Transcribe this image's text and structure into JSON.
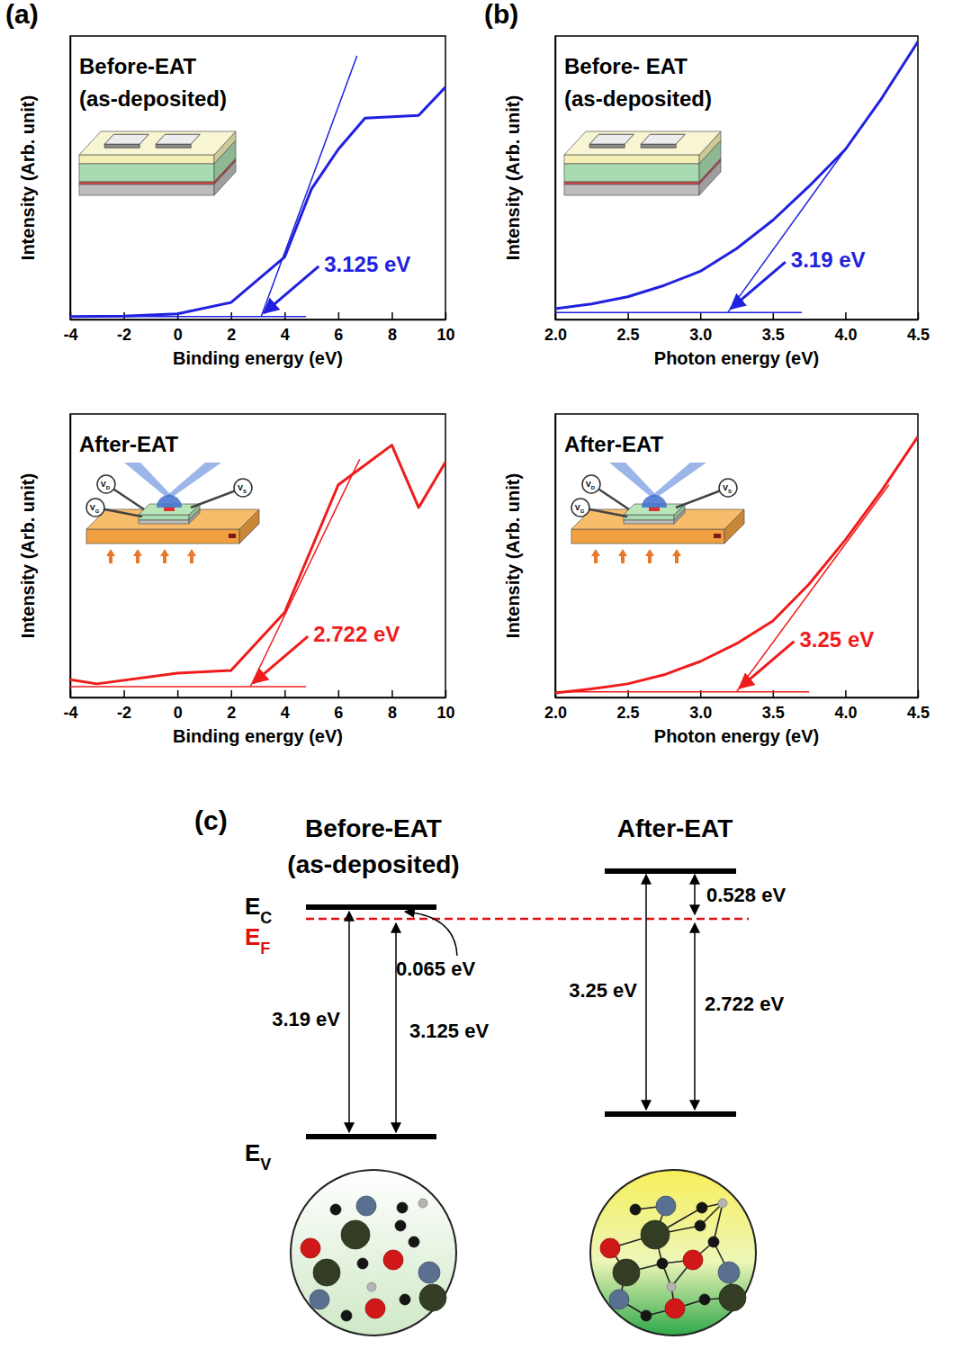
{
  "panels": [
    "(a)",
    "(b)",
    "(c)"
  ],
  "inset": {
    "probes": [
      {
        "main": "V",
        "sub": "D"
      },
      {
        "main": "V",
        "sub": "G"
      },
      {
        "main": "V",
        "sub": "S"
      }
    ]
  },
  "chart_data": [
    {
      "type": "line",
      "title": "Before-EAT",
      "subtitle": "(as-deposited)",
      "x_label": "Binding energy (eV)",
      "y_label": "Intensity (Arb. unit)",
      "xlim": [
        -4,
        10
      ],
      "xticks": [
        -4,
        -2,
        0,
        2,
        4,
        6,
        8,
        10
      ],
      "ylim": [
        0,
        100
      ],
      "tick_labels": "x",
      "color": "#2020e0",
      "series": [
        {
          "x": [
            -4,
            -2,
            0,
            2,
            4,
            5,
            6,
            7,
            9,
            10
          ],
          "values": [
            1,
            1.2,
            2,
            6,
            22,
            46,
            60,
            71,
            72,
            82
          ],
          "line_style": "solid"
        },
        {
          "x": [
            -4,
            4.8
          ],
          "values": [
            1,
            1
          ],
          "line_style": "thin"
        },
        {
          "x": [
            3.125,
            6.7
          ],
          "values": [
            1,
            93
          ],
          "line_style": "thin"
        }
      ],
      "annotations": [
        {
          "text": "3.125 eV",
          "x": 3.125,
          "y": 1
        }
      ]
    },
    {
      "type": "line",
      "title": "After-EAT",
      "x_label": "Binding energy (eV)",
      "y_label": "Intensity (Arb. unit)",
      "xlim": [
        -4,
        10
      ],
      "xticks": [
        -4,
        -2,
        0,
        2,
        4,
        6,
        8,
        10
      ],
      "ylim": [
        0,
        100
      ],
      "tick_labels": "x",
      "color": "#f01c1c",
      "series": [
        {
          "x": [
            -4,
            -3,
            0,
            2,
            4,
            6,
            8,
            9,
            10
          ],
          "values": [
            6.3,
            4.8,
            8.6,
            9.5,
            30,
            75,
            89,
            67,
            83
          ],
          "line_style": "solid"
        },
        {
          "x": [
            -4,
            4.8
          ],
          "values": [
            3.8,
            3.8
          ],
          "line_style": "thin"
        },
        {
          "x": [
            2.722,
            6.8
          ],
          "values": [
            3.8,
            84
          ],
          "line_style": "thin"
        }
      ],
      "annotations": [
        {
          "text": "2.722 eV",
          "x": 2.722,
          "y": 3.8
        }
      ]
    },
    {
      "type": "line",
      "title": "Before- EAT",
      "subtitle": "(as-deposited)",
      "x_label": "Photon energy (eV)",
      "y_label": "Intensity (Arb. unit)",
      "xlim": [
        2,
        4.5
      ],
      "xticks": [
        {
          "value": 2,
          "label": "2.0"
        },
        2.5,
        {
          "value": 3,
          "label": "3.0"
        },
        3.5,
        {
          "value": 4,
          "label": "4.0"
        },
        4.5
      ],
      "ylim": [
        0,
        100
      ],
      "tick_labels": "x",
      "color": "#2020e0",
      "series": [
        {
          "x": [
            2,
            2.25,
            2.5,
            2.75,
            3,
            3.25,
            3.5,
            3.75,
            4,
            4.25,
            4.5
          ],
          "values": [
            3.8,
            5.5,
            8,
            12,
            17,
            25,
            35,
            47,
            60,
            78,
            98
          ],
          "line_style": "solid"
        },
        {
          "x": [
            2,
            3.7
          ],
          "values": [
            2.5,
            2.5
          ],
          "line_style": "thin"
        },
        {
          "x": [
            3.19,
            4.0
          ],
          "values": [
            2.5,
            60
          ],
          "line_style": "thin"
        }
      ],
      "annotations": [
        {
          "text": "3.19 eV",
          "x": 3.19,
          "y": 2.5
        }
      ]
    },
    {
      "type": "line",
      "title": "After-EAT",
      "x_label": "Photon energy (eV)",
      "y_label": "Intensity (Arb. unit)",
      "xlim": [
        2,
        4.5
      ],
      "xticks": [
        {
          "value": 2,
          "label": "2.0"
        },
        2.5,
        {
          "value": 3,
          "label": "3.0"
        },
        3.5,
        {
          "value": 4,
          "label": "4.0"
        },
        4.5
      ],
      "ylim": [
        0,
        100
      ],
      "tick_labels": "x",
      "color": "#f01c1c",
      "series": [
        {
          "x": [
            2,
            2.25,
            2.5,
            2.75,
            3,
            3.25,
            3.5,
            3.75,
            4,
            4.25,
            4.5
          ],
          "values": [
            1.6,
            3,
            4.8,
            8,
            12.7,
            19,
            27,
            40,
            55.6,
            73,
            92
          ],
          "line_style": "solid"
        },
        {
          "x": [
            2,
            3.75
          ],
          "values": [
            2,
            2
          ],
          "line_style": "thin"
        },
        {
          "x": [
            3.25,
            4.3
          ],
          "values": [
            2,
            75
          ],
          "line_style": "thin"
        }
      ],
      "annotations": [
        {
          "text": "3.25 eV",
          "x": 3.25,
          "y": 2
        }
      ]
    }
  ],
  "diagram": {
    "before": {
      "title": "Before-EAT",
      "subtitle": "(as-deposited)",
      "gap": "3.19 eV",
      "ef_to_ev": "3.125 eV",
      "ec_to_ef": "0.065 eV"
    },
    "after": {
      "title": "After-EAT",
      "gap": "3.25 eV",
      "ef_to_ev": "2.722 eV",
      "ec_to_ef": "0.528 eV"
    },
    "levels": {
      "ec": {
        "main": "E",
        "sub": "C"
      },
      "ef": {
        "main": "E",
        "sub": "F"
      },
      "ev": {
        "main": "E",
        "sub": "V"
      }
    }
  }
}
